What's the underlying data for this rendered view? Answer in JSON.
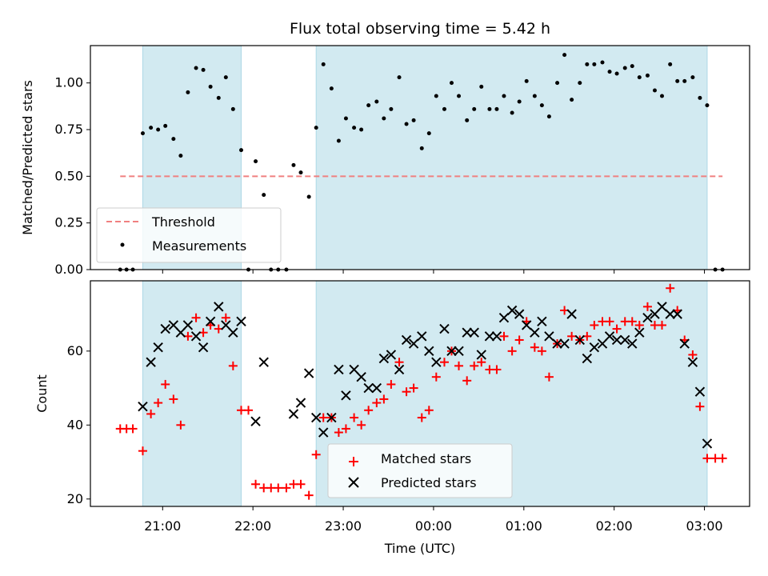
{
  "chart_data": [
    {
      "type": "scatter",
      "title": "Flux total observing time = 5.42 h",
      "xlabel": "",
      "ylabel": "Matched/Predicted stars",
      "ylim": [
        0.0,
        1.2
      ],
      "yticks": [
        0.0,
        0.25,
        0.5,
        0.75,
        1.0
      ],
      "ytick_labels": [
        "0.00",
        "0.25",
        "0.50",
        "0.75",
        "1.00"
      ],
      "x_unit": "hours since 00:00 UTC (negative = previous day)",
      "xlim": [
        -3.8,
        3.5
      ],
      "xticks": [
        -3,
        -2,
        -1,
        0,
        1,
        2,
        3
      ],
      "shaded_intervals": [
        [
          -3.22,
          -2.13
        ],
        [
          -1.3,
          3.03
        ]
      ],
      "shade_color": "#add8e6",
      "threshold": {
        "label": "Threshold",
        "value": 0.5,
        "x_range": [
          -3.47,
          3.2
        ],
        "color": "#f08080"
      },
      "series": [
        {
          "name": "Measurements",
          "color": "#000000",
          "points": [
            [
              -3.47,
              0.0
            ],
            [
              -3.4,
              0.0
            ],
            [
              -3.33,
              0.0
            ],
            [
              -3.22,
              0.73
            ],
            [
              -3.13,
              0.76
            ],
            [
              -3.05,
              0.75
            ],
            [
              -2.97,
              0.77
            ],
            [
              -2.88,
              0.7
            ],
            [
              -2.8,
              0.61
            ],
            [
              -2.72,
              0.95
            ],
            [
              -2.63,
              1.08
            ],
            [
              -2.55,
              1.07
            ],
            [
              -2.47,
              0.98
            ],
            [
              -2.38,
              0.92
            ],
            [
              -2.3,
              1.03
            ],
            [
              -2.22,
              0.86
            ],
            [
              -2.13,
              0.64
            ],
            [
              -2.05,
              0.0
            ],
            [
              -1.97,
              0.58
            ],
            [
              -1.88,
              0.4
            ],
            [
              -1.8,
              0.0
            ],
            [
              -1.72,
              0.0
            ],
            [
              -1.63,
              0.0
            ],
            [
              -1.55,
              0.56
            ],
            [
              -1.47,
              0.52
            ],
            [
              -1.38,
              0.39
            ],
            [
              -1.3,
              0.76
            ],
            [
              -1.22,
              1.1
            ],
            [
              -1.13,
              0.97
            ],
            [
              -1.05,
              0.69
            ],
            [
              -0.97,
              0.81
            ],
            [
              -0.88,
              0.76
            ],
            [
              -0.8,
              0.75
            ],
            [
              -0.72,
              0.88
            ],
            [
              -0.63,
              0.9
            ],
            [
              -0.55,
              0.81
            ],
            [
              -0.47,
              0.86
            ],
            [
              -0.38,
              1.03
            ],
            [
              -0.3,
              0.78
            ],
            [
              -0.22,
              0.8
            ],
            [
              -0.13,
              0.65
            ],
            [
              -0.05,
              0.73
            ],
            [
              0.03,
              0.93
            ],
            [
              0.12,
              0.86
            ],
            [
              0.2,
              1.0
            ],
            [
              0.28,
              0.93
            ],
            [
              0.37,
              0.8
            ],
            [
              0.45,
              0.86
            ],
            [
              0.53,
              0.98
            ],
            [
              0.62,
              0.86
            ],
            [
              0.7,
              0.86
            ],
            [
              0.78,
              0.93
            ],
            [
              0.87,
              0.84
            ],
            [
              0.95,
              0.9
            ],
            [
              1.03,
              1.01
            ],
            [
              1.12,
              0.93
            ],
            [
              1.2,
              0.88
            ],
            [
              1.28,
              0.82
            ],
            [
              1.37,
              1.0
            ],
            [
              1.45,
              1.15
            ],
            [
              1.53,
              0.91
            ],
            [
              1.62,
              1.0
            ],
            [
              1.7,
              1.1
            ],
            [
              1.78,
              1.1
            ],
            [
              1.87,
              1.11
            ],
            [
              1.95,
              1.06
            ],
            [
              2.03,
              1.05
            ],
            [
              2.12,
              1.08
            ],
            [
              2.2,
              1.09
            ],
            [
              2.28,
              1.03
            ],
            [
              2.37,
              1.04
            ],
            [
              2.45,
              0.96
            ],
            [
              2.53,
              0.93
            ],
            [
              2.62,
              1.1
            ],
            [
              2.7,
              1.01
            ],
            [
              2.78,
              1.01
            ],
            [
              2.87,
              1.03
            ],
            [
              2.95,
              0.92
            ],
            [
              3.03,
              0.88
            ],
            [
              3.12,
              0.0
            ],
            [
              3.2,
              0.0
            ]
          ]
        }
      ],
      "legend": {
        "position": "lower left",
        "entries": [
          "Threshold",
          "Measurements"
        ]
      },
      "grid": false
    },
    {
      "type": "scatter",
      "title": "",
      "xlabel": "Time (UTC)",
      "ylabel": "Count",
      "ylim": [
        18,
        79
      ],
      "yticks": [
        20,
        40,
        60
      ],
      "ytick_labels": [
        "20",
        "40",
        "60"
      ],
      "x_unit": "hours since 00:00 UTC (negative = previous day)",
      "xlim": [
        -3.8,
        3.5
      ],
      "xticks": [
        -3,
        -2,
        -1,
        0,
        1,
        2,
        3
      ],
      "xtick_labels": [
        "21:00",
        "22:00",
        "23:00",
        "00:00",
        "01:00",
        "02:00",
        "03:00"
      ],
      "shaded_intervals": [
        [
          -3.22,
          -2.13
        ],
        [
          -1.3,
          3.03
        ]
      ],
      "shade_color": "#add8e6",
      "series": [
        {
          "name": "Matched stars",
          "marker": "plus",
          "color": "#ff0000",
          "points": [
            [
              -3.47,
              39
            ],
            [
              -3.4,
              39
            ],
            [
              -3.33,
              39
            ],
            [
              -3.22,
              33
            ],
            [
              -3.13,
              43
            ],
            [
              -3.05,
              46
            ],
            [
              -2.97,
              51
            ],
            [
              -2.88,
              47
            ],
            [
              -2.8,
              40
            ],
            [
              -2.72,
              64
            ],
            [
              -2.63,
              69
            ],
            [
              -2.55,
              65
            ],
            [
              -2.47,
              67
            ],
            [
              -2.38,
              66
            ],
            [
              -2.3,
              69
            ],
            [
              -2.22,
              56
            ],
            [
              -2.13,
              44
            ],
            [
              -2.05,
              44
            ],
            [
              -1.97,
              24
            ],
            [
              -1.88,
              23
            ],
            [
              -1.8,
              23
            ],
            [
              -1.72,
              23
            ],
            [
              -1.63,
              23
            ],
            [
              -1.55,
              24
            ],
            [
              -1.47,
              24
            ],
            [
              -1.38,
              21
            ],
            [
              -1.3,
              32
            ],
            [
              -1.22,
              42
            ],
            [
              -1.13,
              42
            ],
            [
              -1.05,
              38
            ],
            [
              -0.97,
              39
            ],
            [
              -0.88,
              42
            ],
            [
              -0.8,
              40
            ],
            [
              -0.72,
              44
            ],
            [
              -0.63,
              46
            ],
            [
              -0.55,
              47
            ],
            [
              -0.47,
              51
            ],
            [
              -0.38,
              57
            ],
            [
              -0.3,
              49
            ],
            [
              -0.22,
              50
            ],
            [
              -0.13,
              42
            ],
            [
              -0.05,
              44
            ],
            [
              0.03,
              53
            ],
            [
              0.12,
              57
            ],
            [
              0.2,
              60
            ],
            [
              0.28,
              56
            ],
            [
              0.37,
              52
            ],
            [
              0.45,
              56
            ],
            [
              0.53,
              57
            ],
            [
              0.62,
              55
            ],
            [
              0.7,
              55
            ],
            [
              0.78,
              64
            ],
            [
              0.87,
              60
            ],
            [
              0.95,
              63
            ],
            [
              1.03,
              68
            ],
            [
              1.12,
              61
            ],
            [
              1.2,
              60
            ],
            [
              1.28,
              53
            ],
            [
              1.37,
              62
            ],
            [
              1.45,
              71
            ],
            [
              1.53,
              64
            ],
            [
              1.62,
              63
            ],
            [
              1.7,
              64
            ],
            [
              1.78,
              67
            ],
            [
              1.87,
              68
            ],
            [
              1.95,
              68
            ],
            [
              2.03,
              66
            ],
            [
              2.12,
              68
            ],
            [
              2.2,
              68
            ],
            [
              2.28,
              67
            ],
            [
              2.37,
              72
            ],
            [
              2.45,
              67
            ],
            [
              2.53,
              67
            ],
            [
              2.62,
              77
            ],
            [
              2.7,
              71
            ],
            [
              2.78,
              63
            ],
            [
              2.87,
              59
            ],
            [
              2.95,
              45
            ],
            [
              3.03,
              31
            ],
            [
              3.12,
              31
            ],
            [
              3.2,
              31
            ]
          ]
        },
        {
          "name": "Predicted stars",
          "marker": "x",
          "color": "#000000",
          "points": [
            [
              -3.22,
              45
            ],
            [
              -3.13,
              57
            ],
            [
              -3.05,
              61
            ],
            [
              -2.97,
              66
            ],
            [
              -2.88,
              67
            ],
            [
              -2.8,
              65
            ],
            [
              -2.72,
              67
            ],
            [
              -2.63,
              64
            ],
            [
              -2.55,
              61
            ],
            [
              -2.47,
              68
            ],
            [
              -2.38,
              72
            ],
            [
              -2.3,
              67
            ],
            [
              -2.22,
              65
            ],
            [
              -2.13,
              68
            ],
            [
              -1.97,
              41
            ],
            [
              -1.88,
              57
            ],
            [
              -1.55,
              43
            ],
            [
              -1.47,
              46
            ],
            [
              -1.38,
              54
            ],
            [
              -1.3,
              42
            ],
            [
              -1.22,
              38
            ],
            [
              -1.13,
              42
            ],
            [
              -1.05,
              55
            ],
            [
              -0.97,
              48
            ],
            [
              -0.88,
              55
            ],
            [
              -0.8,
              53
            ],
            [
              -0.72,
              50
            ],
            [
              -0.63,
              50
            ],
            [
              -0.55,
              58
            ],
            [
              -0.47,
              59
            ],
            [
              -0.38,
              55
            ],
            [
              -0.3,
              63
            ],
            [
              -0.22,
              62
            ],
            [
              -0.13,
              64
            ],
            [
              -0.05,
              60
            ],
            [
              0.03,
              57
            ],
            [
              0.12,
              66
            ],
            [
              0.2,
              60
            ],
            [
              0.28,
              60
            ],
            [
              0.37,
              65
            ],
            [
              0.45,
              65
            ],
            [
              0.53,
              59
            ],
            [
              0.62,
              64
            ],
            [
              0.7,
              64
            ],
            [
              0.78,
              69
            ],
            [
              0.87,
              71
            ],
            [
              0.95,
              70
            ],
            [
              1.03,
              67
            ],
            [
              1.12,
              65
            ],
            [
              1.2,
              68
            ],
            [
              1.28,
              64
            ],
            [
              1.37,
              62
            ],
            [
              1.45,
              62
            ],
            [
              1.53,
              70
            ],
            [
              1.62,
              63
            ],
            [
              1.7,
              58
            ],
            [
              1.78,
              61
            ],
            [
              1.87,
              62
            ],
            [
              1.95,
              64
            ],
            [
              2.03,
              63
            ],
            [
              2.12,
              63
            ],
            [
              2.2,
              62
            ],
            [
              2.28,
              65
            ],
            [
              2.37,
              69
            ],
            [
              2.45,
              70
            ],
            [
              2.53,
              72
            ],
            [
              2.62,
              70
            ],
            [
              2.7,
              70
            ],
            [
              2.78,
              62
            ],
            [
              2.87,
              57
            ],
            [
              2.95,
              49
            ],
            [
              3.03,
              35
            ]
          ]
        }
      ],
      "legend": {
        "position": "lower center",
        "entries": [
          "Matched stars",
          "Predicted stars"
        ]
      },
      "grid": false
    }
  ]
}
